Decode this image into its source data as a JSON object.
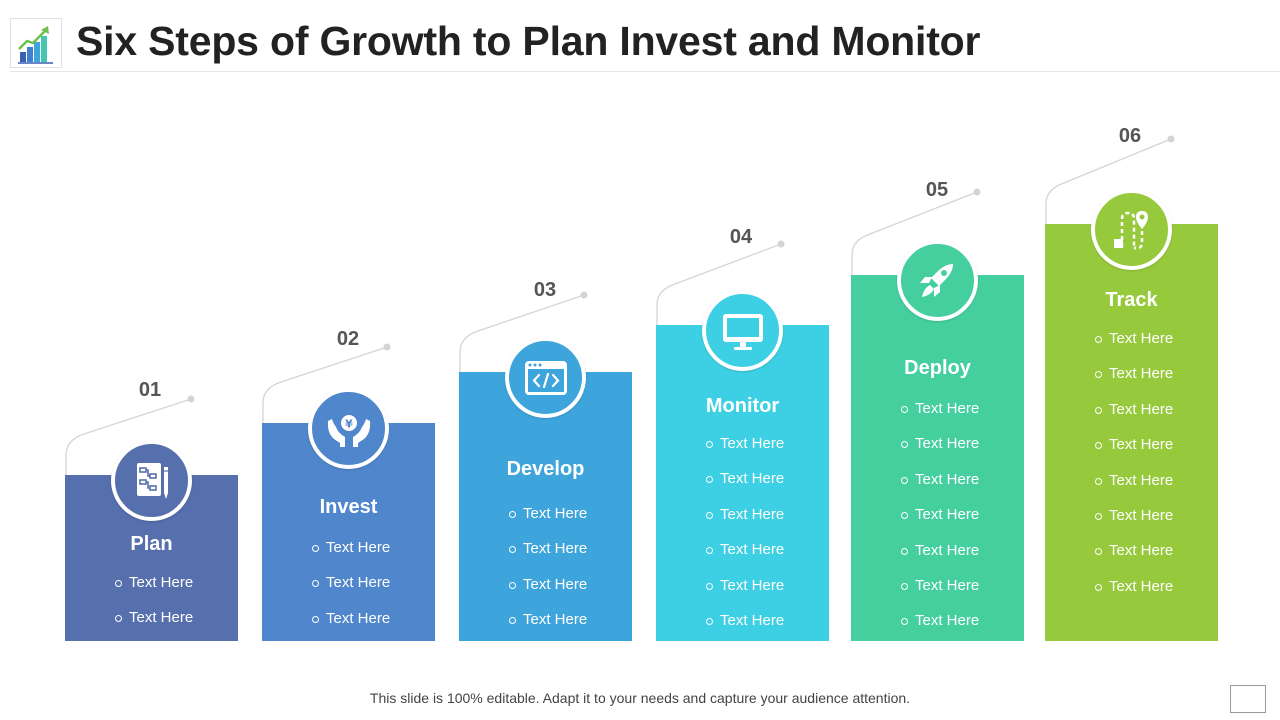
{
  "header": {
    "title": "Six Steps of Growth to Plan Invest and Monitor"
  },
  "steps": [
    {
      "number": "01",
      "title": "Plan",
      "icon": "plan-document-icon",
      "color": "#566fad",
      "bullets": [
        "Text Here",
        "Text Here"
      ]
    },
    {
      "number": "02",
      "title": "Invest",
      "icon": "hands-money-icon",
      "color": "#5086cc",
      "bullets": [
        "Text Here",
        "Text Here",
        "Text Here"
      ]
    },
    {
      "number": "03",
      "title": "Develop",
      "icon": "code-window-icon",
      "color": "#3ea4dc",
      "bullets": [
        "Text Here",
        "Text Here",
        "Text Here",
        "Text Here"
      ]
    },
    {
      "number": "04",
      "title": "Monitor",
      "icon": "monitor-icon",
      "color": "#3dcfe3",
      "bullets": [
        "Text Here",
        "Text Here",
        "Text Here",
        "Text Here",
        "Text Here",
        "Text Here"
      ]
    },
    {
      "number": "05",
      "title": "Deploy",
      "icon": "rocket-icon",
      "color": "#45cf9e",
      "bullets": [
        "Text Here",
        "Text Here",
        "Text Here",
        "Text Here",
        "Text Here",
        "Text Here",
        "Text Here"
      ]
    },
    {
      "number": "06",
      "title": "Track",
      "icon": "route-pin-icon",
      "color": "#97c93c",
      "bullets": [
        "Text Here",
        "Text Here",
        "Text Here",
        "Text Here",
        "Text Here",
        "Text Here",
        "Text Here",
        "Text Here"
      ]
    }
  ],
  "footer": {
    "text": "This slide is 100% editable. Adapt it to your  needs and capture your audience attention."
  }
}
